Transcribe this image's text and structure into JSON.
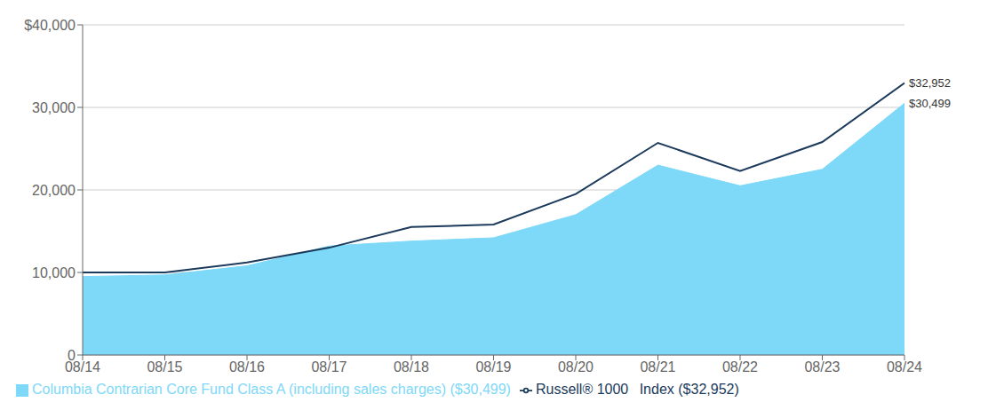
{
  "chart_data": {
    "type": "line",
    "categories": [
      "08/14",
      "08/15",
      "08/16",
      "08/17",
      "08/18",
      "08/19",
      "08/20",
      "08/21",
      "08/22",
      "08/23",
      "08/24"
    ],
    "series": [
      {
        "name": "Columbia Contrarian Core Fund Class A (including sales charges) ($30,499)",
        "type": "area",
        "color": "#7ED8F7",
        "values": [
          9500,
          9700,
          10800,
          13200,
          13800,
          14200,
          17000,
          23000,
          20500,
          22500,
          30499
        ]
      },
      {
        "name": "Russell® 1000  Index ($32,952)",
        "type": "line",
        "color": "#1B3A5C",
        "values": [
          10000,
          10000,
          11200,
          13000,
          15500,
          15800,
          19500,
          25700,
          22300,
          25800,
          32952
        ]
      }
    ],
    "ylim": [
      0,
      40000
    ],
    "yticks": [
      0,
      {
        "value": 10000,
        "label": "10,000"
      },
      {
        "value": 20000,
        "label": "20,000"
      },
      {
        "value": 30000,
        "label": "30,000"
      },
      {
        "value": 40000,
        "label": "$40,000"
      }
    ],
    "grid": true,
    "legend": "lower left",
    "annotations": [
      {
        "text": "$32,952",
        "x": "08/24",
        "y": 32952
      },
      {
        "text": "$30,499",
        "x": "08/24",
        "y": 30499
      }
    ]
  }
}
